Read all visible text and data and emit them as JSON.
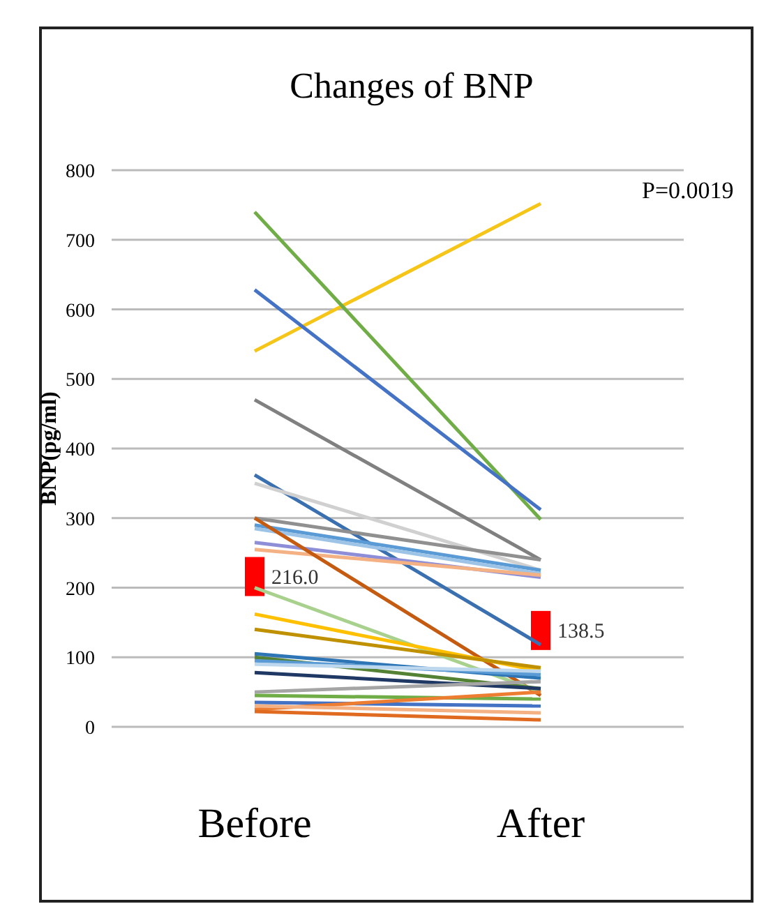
{
  "chart_data": {
    "type": "line",
    "title": "Changes of BNP",
    "ylabel": "BNP(pg/ml)",
    "categories": [
      "Before",
      "After"
    ],
    "ylim": [
      0,
      800
    ],
    "yticks": [
      0,
      100,
      200,
      300,
      400,
      500,
      600,
      700,
      800
    ],
    "grid": "y",
    "marker": "none",
    "line_style": "solid",
    "annotations": [
      "P=0.0019"
    ],
    "series": [
      {
        "color": "#f5c518",
        "values": [
          540,
          752
        ]
      },
      {
        "color": "#70ad47",
        "values": [
          740,
          298
        ]
      },
      {
        "color": "#4472c4",
        "values": [
          628,
          312
        ]
      },
      {
        "color": "#808080",
        "values": [
          470,
          240
        ]
      },
      {
        "color": "#3a6fb0",
        "values": [
          362,
          118
        ]
      },
      {
        "color": "#d0d0d0",
        "values": [
          350,
          225
        ]
      },
      {
        "color": "#909090",
        "values": [
          300,
          240
        ]
      },
      {
        "color": "#5b9bd5",
        "values": [
          290,
          225
        ]
      },
      {
        "color": "#9dc3e6",
        "values": [
          285,
          220
        ]
      },
      {
        "color": "#8e8ed8",
        "values": [
          265,
          215
        ]
      },
      {
        "color": "#f4b183",
        "values": [
          255,
          218
        ]
      },
      {
        "color": "#c55a11",
        "values": [
          300,
          45
        ]
      },
      {
        "color": "#a9d18e",
        "values": [
          200,
          50
        ]
      },
      {
        "color": "#ffc000",
        "values": [
          162,
          80
        ]
      },
      {
        "color": "#bf9000",
        "values": [
          140,
          85
        ]
      },
      {
        "color": "#2e75b6",
        "values": [
          105,
          70
        ]
      },
      {
        "color": "#548235",
        "values": [
          100,
          55
        ]
      },
      {
        "color": "#5b9bd5",
        "values": [
          95,
          75
        ]
      },
      {
        "color": "#bdd7ee",
        "values": [
          90,
          80
        ]
      },
      {
        "color": "#203864",
        "values": [
          78,
          55
        ]
      },
      {
        "color": "#a5a5a5",
        "values": [
          50,
          65
        ]
      },
      {
        "color": "#70ad47",
        "values": [
          45,
          40
        ]
      },
      {
        "color": "#4472c4",
        "values": [
          35,
          30
        ]
      },
      {
        "color": "#ed7d31",
        "values": [
          25,
          50
        ]
      },
      {
        "color": "#f4b183",
        "values": [
          30,
          20
        ]
      },
      {
        "color": "#e06a20",
        "values": [
          22,
          10
        ]
      },
      {
        "type": "scatter",
        "marker": "square",
        "color": "#ff0000",
        "values": [
          216.0,
          138.5
        ],
        "value_labels": [
          "216.0",
          "138.5"
        ]
      }
    ]
  }
}
